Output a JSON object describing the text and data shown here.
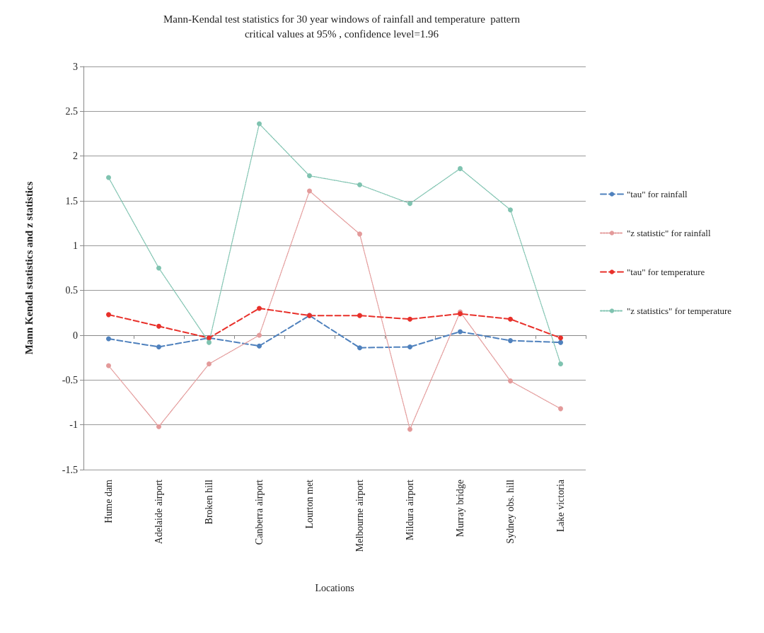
{
  "chart_data": {
    "type": "line",
    "title": "Mann-Kendal test statistics for 30 year windows of rainfall and temperature  pattern",
    "subtitle": "critical values at 95% , confidence level=1.96",
    "xlabel": "Locations",
    "ylabel": "Mann Kendal statistics and z statistics",
    "categories": [
      "Hume dam",
      "Adelaide airport",
      "Broken hill",
      "Canberra airport",
      "Lourton met",
      "Melbourne airport",
      "Mildura airport",
      "Murray bridge",
      "Sydney obs. hill",
      "Lake victoria"
    ],
    "series": [
      {
        "name": "\"tau\" for rainfall",
        "color": "#4f81bd",
        "line_style": "dashed",
        "values": [
          -0.04,
          -0.13,
          -0.03,
          -0.12,
          0.22,
          -0.14,
          -0.13,
          0.04,
          -0.06,
          -0.08
        ]
      },
      {
        "name": "\"z statistic\" for rainfall",
        "color": "#e39a9a",
        "line_style": "dotted",
        "values": [
          -0.34,
          -1.02,
          -0.32,
          0.0,
          1.61,
          1.13,
          -1.05,
          0.26,
          -0.51,
          -0.82
        ]
      },
      {
        "name": "\"tau\" for temperature",
        "color": "#e8302a",
        "line_style": "dashed",
        "values": [
          0.23,
          0.1,
          -0.03,
          0.3,
          0.22,
          0.22,
          0.18,
          0.24,
          0.18,
          -0.03
        ]
      },
      {
        "name": "\"z statistics\" for temperature",
        "color": "#7fc3b0",
        "line_style": "dotted",
        "values": [
          1.76,
          0.75,
          -0.08,
          2.36,
          1.78,
          1.68,
          1.47,
          1.86,
          1.4,
          -0.32
        ]
      }
    ],
    "ylim": [
      -1.5,
      3
    ],
    "yticks": [
      -1.5,
      -1,
      -0.5,
      0,
      0.5,
      1,
      1.5,
      2,
      2.5,
      3
    ],
    "grid": "y",
    "legend": "right",
    "marker": "circle"
  }
}
